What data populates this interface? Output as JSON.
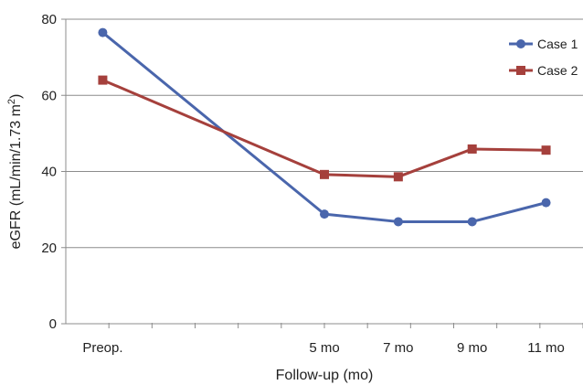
{
  "chart_data": {
    "type": "line",
    "xlabel": "Follow-up (mo)",
    "ylabel": {
      "main": "eGFR (mL/min/1.73 m",
      "superscript": "2",
      "close": ")"
    },
    "x": [
      "Preop.",
      "",
      "",
      "5 mo",
      "7 mo",
      "9 mo",
      "11 mo"
    ],
    "x_tick_count": 12,
    "ylim": [
      0,
      80
    ],
    "yticks": [
      0,
      20,
      40,
      60,
      80
    ],
    "grid": true,
    "legend_position": "top-right",
    "series": [
      {
        "name": "Case 1",
        "color": "#4a66ac",
        "marker": "circle",
        "values": [
          76.5,
          null,
          null,
          28.8,
          26.8,
          26.8,
          31.8
        ]
      },
      {
        "name": "Case 2",
        "color": "#a5403c",
        "marker": "square",
        "values": [
          64.0,
          null,
          null,
          39.2,
          38.6,
          45.9,
          45.6
        ]
      }
    ]
  }
}
